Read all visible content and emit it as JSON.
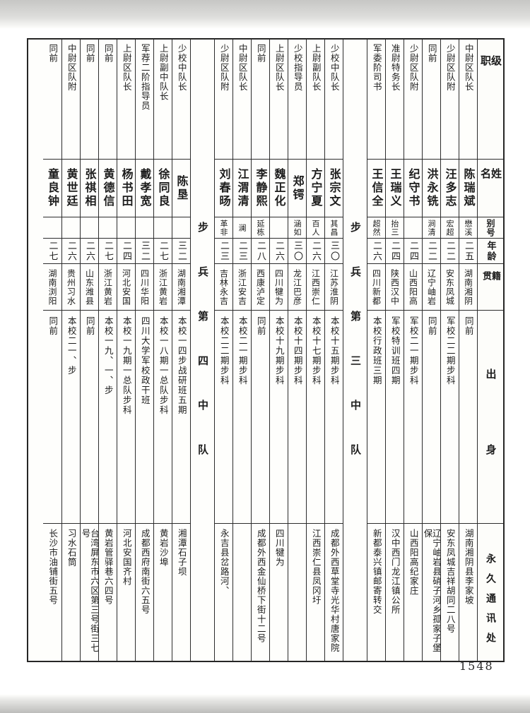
{
  "page": {
    "number": "1548"
  },
  "table": {
    "headers": {
      "position": "级职",
      "name": "姓名",
      "alias": "别号",
      "age": "年龄",
      "native": "籍贯",
      "origin": "出身",
      "address": "永久通讯处"
    },
    "columns": [
      {
        "type": "header"
      },
      {
        "type": "person",
        "position": "中尉区队长",
        "name": "陈瑞斌",
        "alias": "懋溪",
        "age": "二五",
        "native": "湖南湘阴",
        "origin": "同前",
        "address": "湖南湘阴县李家坡"
      },
      {
        "type": "person",
        "position": "少尉区队附",
        "name": "汪多志",
        "alias": "宏超",
        "age": "二二",
        "native": "安东凤城",
        "origin": "军校二二期步科",
        "address": "安东凤城吉祥胡同二八号"
      },
      {
        "type": "person",
        "position": "同前",
        "name": "洪永铣",
        "alias": "涧清",
        "age": "二二",
        "native": "辽宁岫岩",
        "origin": "同前",
        "address": "辽宁岫岩县硝子河乡孤家子堡保"
      },
      {
        "type": "person",
        "position": "少尉区队附",
        "name": "纪守书",
        "alias": "",
        "age": "二四",
        "native": "山西阳高",
        "origin": "军校二一期步科",
        "address": "山西阳高纪家庄"
      },
      {
        "type": "person",
        "position": "准尉特务长",
        "name": "王瑞义",
        "alias": "抬三",
        "age": "二四",
        "native": "陕西汉中",
        "origin": "军校特训班四期",
        "address": "汉中西门龙江镇公所"
      },
      {
        "type": "person",
        "position": "军委阶司书",
        "name": "王信全",
        "alias": "超然",
        "age": "二六",
        "native": "四川新都",
        "origin": "本校行政班三期",
        "address": "新都泰兴镇邮寄转交"
      },
      {
        "type": "section",
        "title": "步兵第三中队"
      },
      {
        "type": "person",
        "position": "少校中队长",
        "name": "张宗文",
        "alias": "其昌",
        "age": "三〇",
        "native": "江苏淮阴",
        "origin": "本校十五期步科",
        "address": "成都外西草堂寺光华村唐家院"
      },
      {
        "type": "person",
        "position": "上尉副队长",
        "name": "方宁夏",
        "alias": "百人",
        "age": "二六",
        "native": "江西崇仁",
        "origin": "本校十七期步科",
        "address": "江西崇仁县凤冈圩"
      },
      {
        "type": "person",
        "position": "少校指导员",
        "name": "郑锷",
        "alias": "涵如",
        "age": "三〇",
        "native": "龙江巴彦",
        "origin": "本校十四期步科",
        "address": ""
      },
      {
        "type": "person",
        "position": "上尉区队长",
        "name": "魏正化",
        "alias": "",
        "age": "二六",
        "native": "四川犍为",
        "origin": "本校十九期步科",
        "address": "四川犍为"
      },
      {
        "type": "person",
        "position": "同前",
        "name": "李静熙",
        "alias": "延栋",
        "age": "二八",
        "native": "西康泸定",
        "origin": "同前",
        "address": "成都外西金仙桥下街十二号"
      },
      {
        "type": "person",
        "position": "中尉区队长",
        "name": "江渭清",
        "alias": "澜",
        "age": "二三",
        "native": "浙江安吉",
        "origin": "本校二一期步科",
        "address": ""
      },
      {
        "type": "person",
        "position": "少尉区队附",
        "name": "刘春旸",
        "alias": "革非",
        "age": "二三",
        "native": "吉林永吉",
        "origin": "本校二二期步科",
        "address": "永吉县岔路河、"
      },
      {
        "type": "section",
        "title": "步兵第四中队"
      },
      {
        "type": "person",
        "position": "少校中队长",
        "name": "陈垦",
        "alias": "",
        "age": "三二",
        "native": "湖南湘潭",
        "origin": "本校一四步战研班五期",
        "address": "湘潭石子坝"
      },
      {
        "type": "person",
        "position": "上尉副中队长",
        "name": "徐同良",
        "alias": "",
        "age": "二七",
        "native": "浙江黄岩",
        "origin": "本校一八期一总队步科",
        "address": "黄岩沙埠"
      },
      {
        "type": "person",
        "position": "军荐二阶指导员",
        "name": "戴孝宽",
        "alias": "",
        "age": "三二",
        "native": "四川华阳",
        "origin": "四川大学军校政干班",
        "address": "成都西府南街六五号"
      },
      {
        "type": "person",
        "position": "上尉区队长",
        "name": "杨书田",
        "alias": "",
        "age": "二四",
        "native": "河北安国",
        "origin": "本校一九期一总队步科",
        "address": "河北安国齐村"
      },
      {
        "type": "person",
        "position": "同前",
        "name": "黄德信",
        "alias": "",
        "age": "二七",
        "native": "浙江黄岩",
        "origin": "本校一九、一、步",
        "address": "黄岩管驿巷六四号"
      },
      {
        "type": "person",
        "position": "同前",
        "name": "张祺相",
        "alias": "",
        "age": "二六",
        "native": "山东潍县",
        "origin": "同前",
        "address": "台湾屏东市六区第三号街三七号"
      },
      {
        "type": "person",
        "position": "中尉区队附",
        "name": "黄世廷",
        "alias": "",
        "age": "二六",
        "native": "贵州习水",
        "origin": "本校二一、步",
        "address": "习水石筒"
      },
      {
        "type": "person",
        "position": "同前",
        "name": "童良钟",
        "alias": "",
        "age": "二七",
        "native": "湖南浏阳",
        "origin": "同前",
        "address": "长沙市油铺街五号"
      }
    ]
  }
}
